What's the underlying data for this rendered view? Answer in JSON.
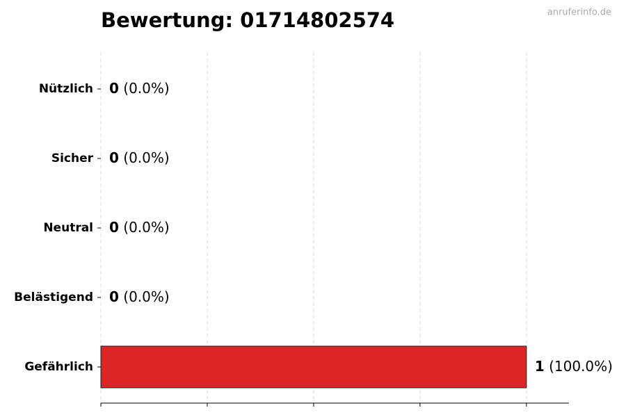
{
  "chart_data": {
    "type": "hbar",
    "title": "Bewertung: 01714802574",
    "watermark": "anruferinfo.de",
    "categories": [
      "Nützlich",
      "Sicher",
      "Neutral",
      "Belästigend",
      "Gefährlich"
    ],
    "values": [
      0,
      0,
      0,
      0,
      1
    ],
    "percents": [
      0,
      0,
      0,
      0,
      100
    ],
    "percent_labels": [
      "(0.0%)",
      "(0.0%)",
      "(0.0%)",
      "(0.0%)",
      "(100.0%)"
    ],
    "color": "#dc2626",
    "xlim": [
      0,
      1.1
    ],
    "xticks": [
      0,
      0.25,
      0.5,
      0.75,
      1
    ],
    "grid": true
  }
}
